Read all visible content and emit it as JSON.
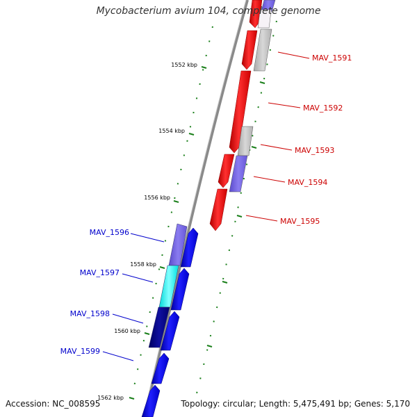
{
  "title": "Mycobacterium avium 104, complete genome",
  "footer": {
    "accession": "Accession: NC_008595",
    "stats": "Topology: circular; Length: 5,475,491 bp; Genes: 5,170"
  },
  "colors": {
    "forward_strand": "#ff0000",
    "reverse_strand": "#0000ff",
    "backbone": "#808080",
    "tick": "#1a7f1a",
    "label_forward": "#cc0000",
    "label_reverse": "#0000cc",
    "gene_gray": "#c0c0c0",
    "gene_slate": "#7b68ee",
    "gene_cyan": "#00ffff",
    "gene_navy": "#000080"
  },
  "scale_labels": [
    "1552 kbp",
    "1554 kbp",
    "1556 kbp",
    "1558 kbp",
    "1560 kbp",
    "1562 kbp"
  ],
  "gene_labels": {
    "forward": [
      "MAV_1591",
      "MAV_1592",
      "MAV_1593",
      "MAV_1594",
      "MAV_1595"
    ],
    "reverse": [
      "MAV_1596",
      "MAV_1597",
      "MAV_1598",
      "MAV_1599"
    ]
  }
}
